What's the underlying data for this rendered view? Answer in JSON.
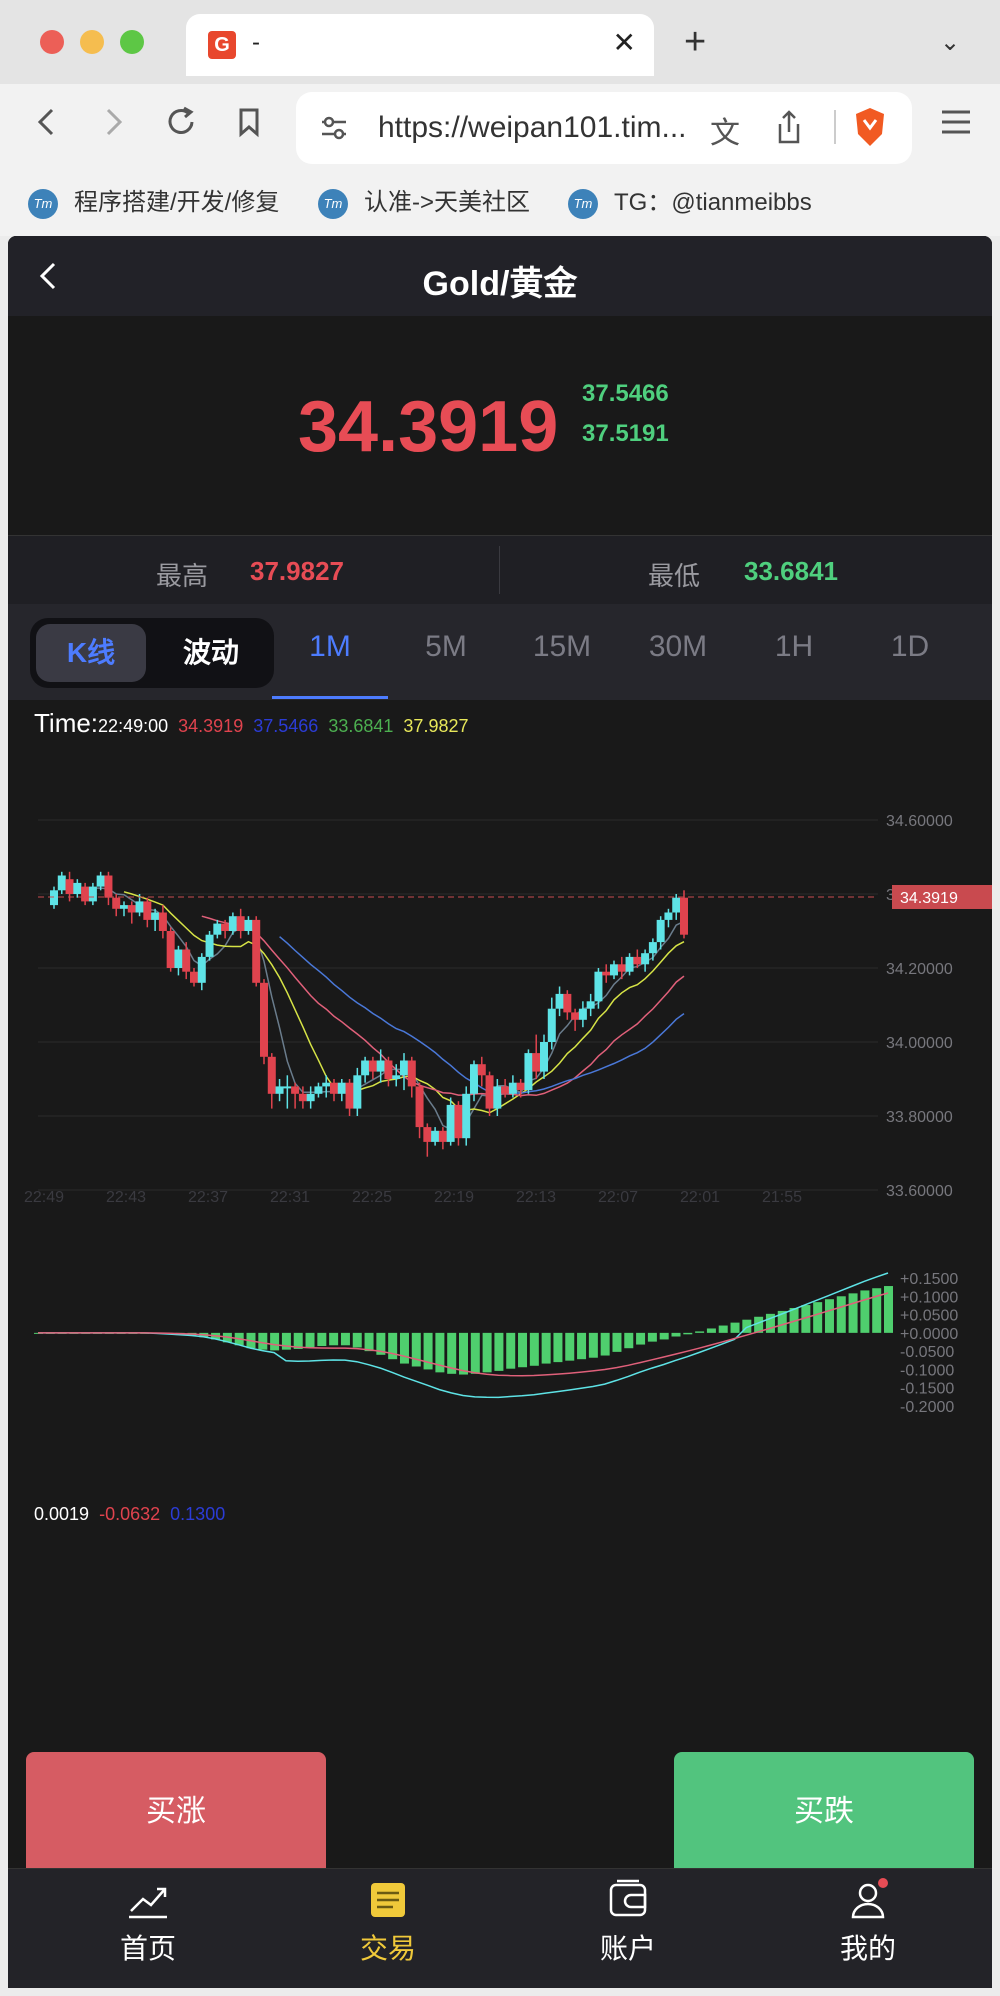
{
  "browser": {
    "tab_title": "-",
    "tab_close": "✕",
    "new_tab": "+",
    "tab_menu": "⌄",
    "url": "https://weipan101.tim...",
    "bookmarks": [
      "程序搭建/开发/修复",
      "认准->天美社区",
      "TG：@tianmeibbs"
    ],
    "bookmark_icon_text": "Tm"
  },
  "app": {
    "title": "Gold/黄金",
    "price": "34.3919",
    "sub_price_1": "37.5466",
    "sub_price_2": "37.5191",
    "high_label": "最高",
    "high_value": "37.9827",
    "low_label": "最低",
    "low_value": "33.6841",
    "toggle_k": "K线",
    "toggle_wave": "波动",
    "timeframes": [
      "1M",
      "5M",
      "15M",
      "30M",
      "1H",
      "1D"
    ],
    "active_timeframe": "1M",
    "buy_up": "买涨",
    "buy_down": "买跌",
    "nav": [
      "首页",
      "交易",
      "账户",
      "我的"
    ],
    "active_nav": "交易"
  },
  "info": {
    "time_label": "Time:",
    "time_value": "22:49:00",
    "v1": "34.3919",
    "v2": "37.5466",
    "v3": "33.6841",
    "v4": "37.9827"
  },
  "macd_info": {
    "v1": "0.0019",
    "v2": "-0.0632",
    "v3": "0.1300"
  },
  "colors": {
    "up": "#5ee3e6",
    "down": "#e0434e",
    "green": "#4fcf7e",
    "red": "#e74c55",
    "accent_blue": "#4d7cff",
    "nav_active": "#f0c93a"
  },
  "chart_data": [
    {
      "type": "candlestick",
      "x_labels": [
        "22:49",
        "22:43",
        "22:37",
        "22:31",
        "22:25",
        "22:19",
        "22:13",
        "22:07",
        "22:01",
        "21:55"
      ],
      "y_ticks": [
        "34.60000",
        "34.40000",
        "34.20000",
        "34.00000",
        "33.80000",
        "33.60000"
      ],
      "ylim": [
        33.6,
        34.6
      ],
      "last_price_label": "34.3919",
      "candles": [
        [
          34.37,
          34.41,
          34.36,
          34.42
        ],
        [
          34.41,
          34.45,
          34.4,
          34.46
        ],
        [
          34.44,
          34.4,
          34.38,
          34.46
        ],
        [
          34.4,
          34.43,
          34.39,
          34.44
        ],
        [
          34.42,
          34.38,
          34.37,
          34.43
        ],
        [
          34.38,
          34.42,
          34.37,
          34.43
        ],
        [
          34.42,
          34.45,
          34.41,
          34.46
        ],
        [
          34.45,
          34.39,
          34.37,
          34.46
        ],
        [
          34.39,
          34.36,
          34.34,
          34.4
        ],
        [
          34.36,
          34.37,
          34.34,
          34.38
        ],
        [
          34.37,
          34.35,
          34.32,
          34.38
        ],
        [
          34.35,
          34.38,
          34.34,
          34.4
        ],
        [
          34.38,
          34.33,
          34.31,
          34.39
        ],
        [
          34.33,
          34.35,
          34.3,
          34.36
        ],
        [
          34.35,
          34.3,
          34.28,
          34.37
        ],
        [
          34.3,
          34.2,
          34.19,
          34.31
        ],
        [
          34.2,
          34.25,
          34.18,
          34.26
        ],
        [
          34.25,
          34.19,
          34.17,
          34.27
        ],
        [
          34.19,
          34.16,
          34.15,
          34.2
        ],
        [
          34.16,
          34.23,
          34.14,
          34.24
        ],
        [
          34.23,
          34.29,
          34.22,
          34.3
        ],
        [
          34.29,
          34.32,
          34.28,
          34.33
        ],
        [
          34.32,
          34.3,
          34.28,
          34.33
        ],
        [
          34.3,
          34.34,
          34.29,
          34.35
        ],
        [
          34.34,
          34.3,
          34.28,
          34.36
        ],
        [
          34.3,
          34.33,
          34.29,
          34.34
        ],
        [
          34.33,
          34.16,
          34.15,
          34.34
        ],
        [
          34.16,
          33.96,
          33.94,
          34.17
        ],
        [
          33.96,
          33.86,
          33.82,
          33.97
        ],
        [
          33.86,
          33.88,
          33.84,
          33.9
        ],
        [
          33.88,
          33.88,
          33.82,
          33.91
        ],
        [
          33.88,
          33.86,
          33.82,
          33.89
        ],
        [
          33.86,
          33.84,
          33.82,
          33.88
        ],
        [
          33.84,
          33.86,
          33.82,
          33.88
        ],
        [
          33.86,
          33.88,
          33.85,
          33.89
        ],
        [
          33.88,
          33.89,
          33.85,
          33.91
        ],
        [
          33.89,
          33.86,
          33.84,
          33.9
        ],
        [
          33.86,
          33.89,
          33.84,
          33.9
        ],
        [
          33.89,
          33.82,
          33.8,
          33.9
        ],
        [
          33.82,
          33.91,
          33.8,
          33.93
        ],
        [
          33.91,
          33.95,
          33.89,
          33.96
        ],
        [
          33.95,
          33.92,
          33.9,
          33.96
        ],
        [
          33.92,
          33.95,
          33.89,
          33.98
        ],
        [
          33.95,
          33.9,
          33.88,
          33.96
        ],
        [
          33.9,
          33.91,
          33.88,
          33.94
        ],
        [
          33.91,
          33.95,
          33.87,
          33.97
        ],
        [
          33.95,
          33.88,
          33.85,
          33.96
        ],
        [
          33.88,
          33.77,
          33.74,
          33.89
        ],
        [
          33.77,
          33.73,
          33.69,
          33.78
        ],
        [
          33.73,
          33.76,
          33.72,
          33.77
        ],
        [
          33.76,
          33.73,
          33.71,
          33.77
        ],
        [
          33.73,
          33.83,
          33.72,
          33.85
        ],
        [
          33.83,
          33.74,
          33.72,
          33.84
        ],
        [
          33.74,
          33.86,
          33.72,
          33.88
        ],
        [
          33.86,
          33.94,
          33.84,
          33.95
        ],
        [
          33.94,
          33.91,
          33.88,
          33.96
        ],
        [
          33.91,
          33.82,
          33.8,
          33.92
        ],
        [
          33.82,
          33.88,
          33.8,
          33.9
        ],
        [
          33.88,
          33.86,
          33.85,
          33.9
        ],
        [
          33.86,
          33.89,
          33.85,
          33.91
        ],
        [
          33.89,
          33.87,
          33.85,
          33.9
        ],
        [
          33.87,
          33.97,
          33.86,
          33.98
        ],
        [
          33.97,
          33.92,
          33.9,
          34.02
        ],
        [
          33.92,
          34.0,
          33.9,
          34.02
        ],
        [
          34.0,
          34.09,
          33.98,
          34.12
        ],
        [
          34.09,
          34.13,
          34.07,
          34.15
        ],
        [
          34.13,
          34.08,
          34.06,
          34.14
        ],
        [
          34.08,
          34.06,
          34.03,
          34.09
        ],
        [
          34.06,
          34.09,
          34.04,
          34.11
        ],
        [
          34.09,
          34.11,
          34.07,
          34.13
        ],
        [
          34.11,
          34.19,
          34.09,
          34.2
        ],
        [
          34.19,
          34.18,
          34.16,
          34.21
        ],
        [
          34.18,
          34.21,
          34.17,
          34.22
        ],
        [
          34.21,
          34.19,
          34.17,
          34.23
        ],
        [
          34.19,
          34.23,
          34.18,
          34.24
        ],
        [
          34.23,
          34.21,
          34.2,
          34.25
        ],
        [
          34.21,
          34.24,
          34.19,
          34.25
        ],
        [
          34.24,
          34.27,
          34.22,
          34.28
        ],
        [
          34.27,
          34.33,
          34.25,
          34.34
        ],
        [
          34.33,
          34.35,
          34.31,
          34.36
        ],
        [
          34.35,
          34.39,
          34.33,
          34.4
        ],
        [
          34.39,
          34.29,
          34.28,
          34.41
        ]
      ]
    },
    {
      "type": "bar",
      "y_ticks": [
        "+0.1500",
        "+0.1000",
        "+0.0500",
        "+0.0000",
        "-0.0500",
        "-0.1000",
        "-0.1500",
        "-0.2000"
      ],
      "ylim": [
        -0.2,
        0.15
      ],
      "histogram": [
        0,
        0,
        0,
        0,
        0,
        0,
        0,
        0,
        0,
        0,
        -0.002,
        -0.004,
        -0.006,
        -0.008,
        -0.012,
        -0.018,
        -0.026,
        -0.034,
        -0.042,
        -0.046,
        -0.048,
        -0.046,
        -0.044,
        -0.04,
        -0.036,
        -0.034,
        -0.034,
        -0.04,
        -0.05,
        -0.06,
        -0.072,
        -0.084,
        -0.092,
        -0.1,
        -0.108,
        -0.112,
        -0.114,
        -0.112,
        -0.108,
        -0.104,
        -0.098,
        -0.094,
        -0.09,
        -0.084,
        -0.08,
        -0.076,
        -0.072,
        -0.068,
        -0.062,
        -0.052,
        -0.042,
        -0.032,
        -0.024,
        -0.018,
        -0.01,
        -0.004,
        0.004,
        0.012,
        0.02,
        0.028,
        0.036,
        0.044,
        0.052,
        0.06,
        0.068,
        0.076,
        0.084,
        0.092,
        0.1,
        0.108,
        0.116,
        0.122,
        0.128
      ]
    }
  ]
}
